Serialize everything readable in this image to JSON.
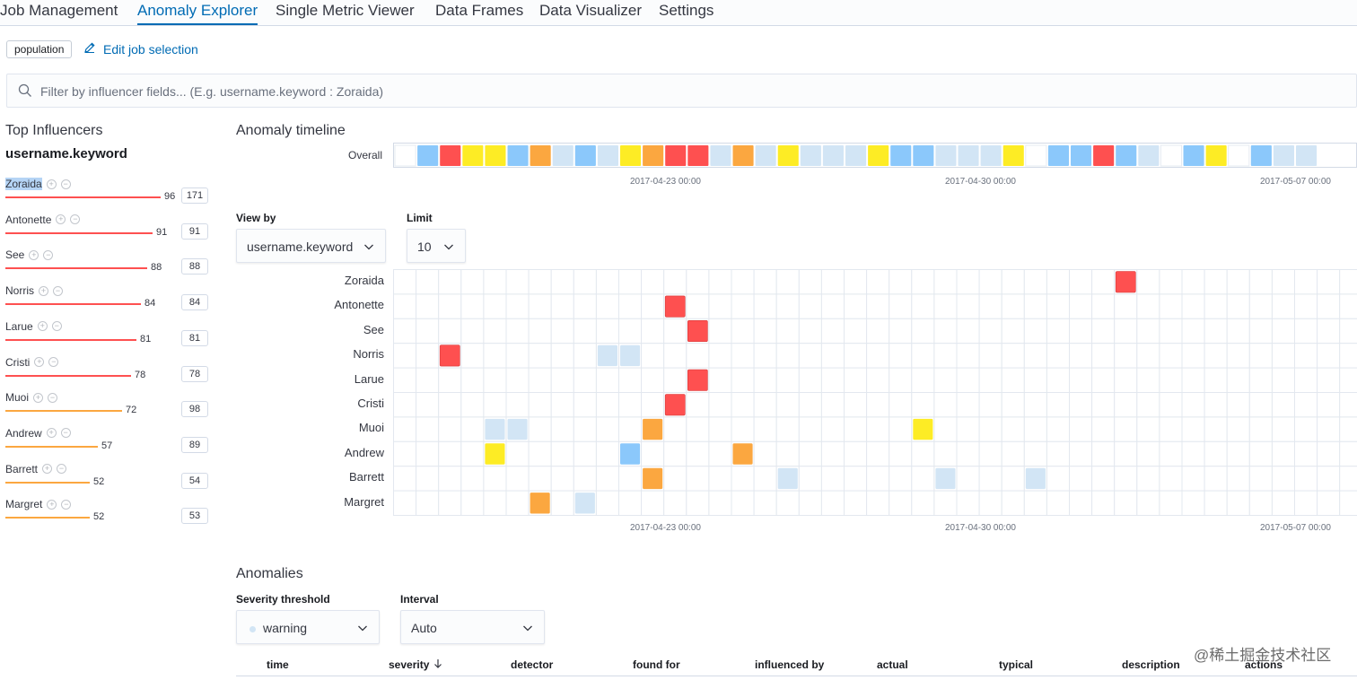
{
  "nav": {
    "tabs": [
      {
        "label": "Job Management",
        "active": false
      },
      {
        "label": "Anomaly Explorer",
        "active": true
      },
      {
        "label": "Single Metric Viewer",
        "active": false
      },
      {
        "label": "Data Frames",
        "active": false
      },
      {
        "label": "Data Visualizer",
        "active": false
      },
      {
        "label": "Settings",
        "active": false
      }
    ]
  },
  "job": {
    "badge": "population",
    "edit_label": "Edit job selection"
  },
  "search": {
    "placeholder": "Filter by influencer fields... (E.g. username.keyword : Zoraida)"
  },
  "influencers": {
    "title": "Top Influencers",
    "field": "username.keyword",
    "items": [
      {
        "name": "Zoraida",
        "score": 96,
        "total": 171
      },
      {
        "name": "Antonette",
        "score": 91,
        "total": 91
      },
      {
        "name": "See",
        "score": 88,
        "total": 88
      },
      {
        "name": "Norris",
        "score": 84,
        "total": 84
      },
      {
        "name": "Larue",
        "score": 81,
        "total": 81
      },
      {
        "name": "Cristi",
        "score": 78,
        "total": 78
      },
      {
        "name": "Muoi",
        "score": 72,
        "total": 98
      },
      {
        "name": "Andrew",
        "score": 57,
        "total": 89
      },
      {
        "name": "Barrett",
        "score": 52,
        "total": 54
      },
      {
        "name": "Margret",
        "score": 52,
        "total": 53
      }
    ]
  },
  "timeline": {
    "title": "Anomaly timeline",
    "overall_label": "Overall",
    "axis_labels": [
      "2017-04-23 00:00",
      "2017-04-30 00:00",
      "2017-05-07 00:00"
    ],
    "view_by": {
      "label": "View by",
      "value": "username.keyword"
    },
    "limit": {
      "label": "Limit",
      "value": "10"
    },
    "colors": {
      "critical": "#fe5050",
      "major": "#fba740",
      "minor": "#fdec25",
      "warning": "#8bc8fb",
      "low": "#d2e5f5",
      "empty": "#ffffff"
    },
    "overall": [
      "empty",
      "warning",
      "critical",
      "minor",
      "minor",
      "warning",
      "major",
      "low",
      "warning",
      "low",
      "minor",
      "major",
      "critical",
      "critical",
      "low",
      "major",
      "low",
      "minor",
      "low",
      "low",
      "low",
      "minor",
      "warning",
      "warning",
      "low",
      "low",
      "low",
      "minor",
      "empty",
      "warning",
      "warning",
      "critical",
      "warning",
      "low",
      "empty",
      "warning",
      "minor",
      "empty",
      "warning",
      "low",
      "low"
    ],
    "rows": [
      {
        "label": "Zoraida",
        "cells": [
          {
            "col": 32,
            "sev": "critical"
          }
        ]
      },
      {
        "label": "Antonette",
        "cells": [
          {
            "col": 12,
            "sev": "critical"
          }
        ]
      },
      {
        "label": "See",
        "cells": [
          {
            "col": 13,
            "sev": "critical"
          }
        ]
      },
      {
        "label": "Norris",
        "cells": [
          {
            "col": 2,
            "sev": "critical"
          },
          {
            "col": 9,
            "sev": "low"
          },
          {
            "col": 10,
            "sev": "low"
          }
        ]
      },
      {
        "label": "Larue",
        "cells": [
          {
            "col": 13,
            "sev": "critical"
          }
        ]
      },
      {
        "label": "Cristi",
        "cells": [
          {
            "col": 12,
            "sev": "critical"
          }
        ]
      },
      {
        "label": "Muoi",
        "cells": [
          {
            "col": 4,
            "sev": "low"
          },
          {
            "col": 5,
            "sev": "low"
          },
          {
            "col": 11,
            "sev": "major"
          },
          {
            "col": 23,
            "sev": "minor"
          }
        ]
      },
      {
        "label": "Andrew",
        "cells": [
          {
            "col": 4,
            "sev": "minor"
          },
          {
            "col": 10,
            "sev": "warning"
          },
          {
            "col": 15,
            "sev": "major"
          }
        ]
      },
      {
        "label": "Barrett",
        "cells": [
          {
            "col": 11,
            "sev": "major"
          },
          {
            "col": 17,
            "sev": "low"
          },
          {
            "col": 24,
            "sev": "low"
          },
          {
            "col": 28,
            "sev": "low"
          }
        ]
      },
      {
        "label": "Margret",
        "cells": [
          {
            "col": 6,
            "sev": "major"
          },
          {
            "col": 8,
            "sev": "low"
          }
        ]
      }
    ]
  },
  "anomalies": {
    "title": "Anomalies",
    "severity": {
      "label": "Severity threshold",
      "value": "warning"
    },
    "interval": {
      "label": "Interval",
      "value": "Auto"
    },
    "columns": [
      "time",
      "severity",
      "detector",
      "found for",
      "influenced by",
      "actual",
      "typical",
      "description",
      "actions"
    ]
  },
  "watermark": "@稀土掘金技术社区"
}
